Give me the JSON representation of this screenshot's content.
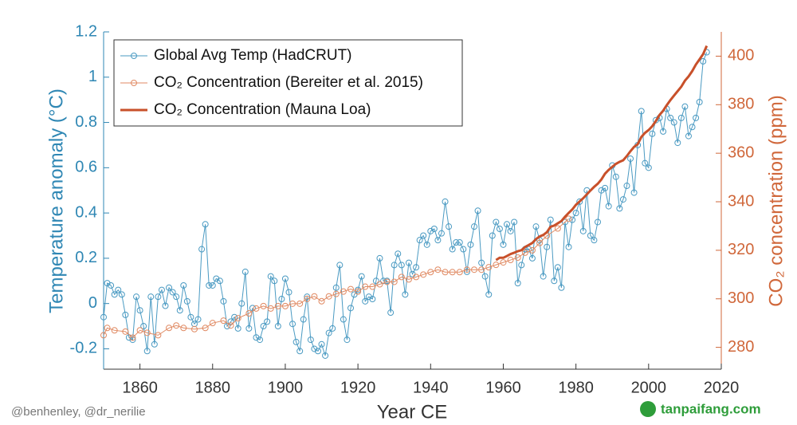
{
  "chart_data": {
    "type": "line",
    "xlabel": "Year CE",
    "ylabel": "Temperature anomaly (°C)",
    "y2label": "CO₂ concentration (ppm)",
    "credit": "@benhenley, @dr_nerilie",
    "watermark": "tanpaifang.com",
    "legend": "upper left",
    "xlim": [
      1850,
      2020
    ],
    "xticks": [
      1860,
      1880,
      1900,
      1920,
      1940,
      1960,
      1980,
      2000,
      2020
    ],
    "ylim": [
      -0.29,
      1.2
    ],
    "yticks": [
      -0.2,
      0,
      0.2,
      0.4,
      0.6,
      0.8,
      1,
      1.2
    ],
    "y2lim": [
      271,
      410
    ],
    "y2ticks": [
      280,
      300,
      320,
      340,
      360,
      380,
      400
    ],
    "axis_colors": {
      "y": "#2f87b4",
      "y2": "#d0673a"
    },
    "series": [
      {
        "name": "Global Avg Temp (HadCRUT)",
        "color": "#4a9ac2",
        "marker": "circle",
        "axis": "y",
        "x": [
          1850,
          1851,
          1852,
          1853,
          1854,
          1855,
          1856,
          1857,
          1858,
          1859,
          1860,
          1861,
          1862,
          1863,
          1864,
          1865,
          1866,
          1867,
          1868,
          1869,
          1870,
          1871,
          1872,
          1873,
          1874,
          1875,
          1876,
          1877,
          1878,
          1879,
          1880,
          1881,
          1882,
          1883,
          1884,
          1885,
          1886,
          1887,
          1888,
          1889,
          1890,
          1891,
          1892,
          1893,
          1894,
          1895,
          1896,
          1897,
          1898,
          1899,
          1900,
          1901,
          1902,
          1903,
          1904,
          1905,
          1906,
          1907,
          1908,
          1909,
          1910,
          1911,
          1912,
          1913,
          1914,
          1915,
          1916,
          1917,
          1918,
          1919,
          1920,
          1921,
          1922,
          1923,
          1924,
          1925,
          1926,
          1927,
          1928,
          1929,
          1930,
          1931,
          1932,
          1933,
          1934,
          1935,
          1936,
          1937,
          1938,
          1939,
          1940,
          1941,
          1942,
          1943,
          1944,
          1945,
          1946,
          1947,
          1948,
          1949,
          1950,
          1951,
          1952,
          1953,
          1954,
          1955,
          1956,
          1957,
          1958,
          1959,
          1960,
          1961,
          1962,
          1963,
          1964,
          1965,
          1966,
          1967,
          1968,
          1969,
          1970,
          1971,
          1972,
          1973,
          1974,
          1975,
          1976,
          1977,
          1978,
          1979,
          1980,
          1981,
          1982,
          1983,
          1984,
          1985,
          1986,
          1987,
          1988,
          1989,
          1990,
          1991,
          1992,
          1993,
          1994,
          1995,
          1996,
          1997,
          1998,
          1999,
          2000,
          2001,
          2002,
          2003,
          2004,
          2005,
          2006,
          2007,
          2008,
          2009,
          2010,
          2011,
          2012,
          2013,
          2014,
          2015,
          2016
        ],
        "values": [
          -0.06,
          0.09,
          0.08,
          0.04,
          0.06,
          0.04,
          -0.05,
          -0.15,
          -0.16,
          0.03,
          -0.03,
          -0.1,
          -0.21,
          0.03,
          -0.18,
          0.03,
          0.06,
          -0.01,
          0.07,
          0.05,
          0.03,
          -0.03,
          0.08,
          0.01,
          -0.06,
          -0.09,
          -0.07,
          0.24,
          0.35,
          0.08,
          0.08,
          0.11,
          0.1,
          0.01,
          -0.1,
          -0.08,
          -0.06,
          -0.11,
          0.0,
          0.14,
          -0.11,
          -0.02,
          -0.15,
          -0.16,
          -0.1,
          -0.08,
          0.12,
          0.1,
          -0.1,
          0.02,
          0.11,
          0.05,
          -0.09,
          -0.17,
          -0.21,
          -0.07,
          0.03,
          -0.16,
          -0.2,
          -0.21,
          -0.18,
          -0.23,
          -0.13,
          -0.11,
          0.07,
          0.17,
          -0.07,
          -0.16,
          -0.02,
          0.04,
          0.06,
          0.12,
          0.01,
          0.03,
          0.02,
          0.1,
          0.2,
          0.1,
          0.1,
          -0.04,
          0.17,
          0.22,
          0.17,
          0.04,
          0.18,
          0.13,
          0.16,
          0.28,
          0.3,
          0.26,
          0.32,
          0.33,
          0.28,
          0.31,
          0.45,
          0.34,
          0.24,
          0.27,
          0.27,
          0.24,
          0.14,
          0.26,
          0.34,
          0.41,
          0.18,
          0.12,
          0.04,
          0.3,
          0.36,
          0.33,
          0.26,
          0.35,
          0.32,
          0.36,
          0.09,
          0.17,
          0.24,
          0.24,
          0.2,
          0.34,
          0.28,
          0.12,
          0.25,
          0.37,
          0.1,
          0.16,
          0.07,
          0.36,
          0.25,
          0.37,
          0.4,
          0.45,
          0.32,
          0.5,
          0.3,
          0.28,
          0.36,
          0.5,
          0.51,
          0.43,
          0.61,
          0.56,
          0.42,
          0.46,
          0.52,
          0.64,
          0.49,
          0.7,
          0.85,
          0.62,
          0.6,
          0.75,
          0.81,
          0.82,
          0.76,
          0.86,
          0.82,
          0.8,
          0.71,
          0.82,
          0.87,
          0.74,
          0.78,
          0.82,
          0.89,
          1.07,
          1.11
        ]
      },
      {
        "name": "CO₂ Concentration (Bereiter et al. 2015)",
        "color": "#e08a63",
        "marker": "circle",
        "axis": "y2",
        "x": [
          1850,
          1851,
          1853,
          1856,
          1858,
          1860,
          1862,
          1865,
          1868,
          1870,
          1872,
          1875,
          1878,
          1880,
          1883,
          1885,
          1887,
          1890,
          1892,
          1894,
          1896,
          1898,
          1900,
          1902,
          1904,
          1906,
          1908,
          1910,
          1912,
          1914,
          1916,
          1918,
          1920,
          1922,
          1924,
          1926,
          1928,
          1930,
          1932,
          1934,
          1936,
          1938,
          1940,
          1942,
          1944,
          1946,
          1948,
          1950,
          1952,
          1954,
          1956,
          1958,
          1960,
          1962,
          1964,
          1966,
          1968,
          1970,
          1972,
          1975,
          1978
        ],
        "values": [
          285,
          288,
          287,
          286.5,
          284,
          287,
          286,
          285,
          288,
          289,
          288,
          287.5,
          288,
          290,
          291,
          289,
          292,
          294,
          296,
          297,
          296,
          297,
          297,
          298,
          298,
          300,
          301,
          299,
          301,
          302,
          303,
          304,
          303,
          305,
          305,
          306,
          307,
          307,
          309,
          308,
          309,
          310,
          311,
          312,
          311,
          311,
          311,
          312,
          312,
          312,
          313,
          314,
          315,
          316,
          317,
          319,
          320,
          323,
          326,
          329,
          333
        ]
      },
      {
        "name": "CO₂ Concentration (Mauna Loa)",
        "color": "#c8502a",
        "marker": "none",
        "axis": "y2",
        "x": [
          1958,
          1959,
          1960,
          1961,
          1962,
          1963,
          1964,
          1965,
          1966,
          1967,
          1968,
          1969,
          1970,
          1971,
          1972,
          1973,
          1974,
          1975,
          1976,
          1977,
          1978,
          1979,
          1980,
          1981,
          1982,
          1983,
          1984,
          1985,
          1986,
          1987,
          1988,
          1989,
          1990,
          1991,
          1992,
          1993,
          1994,
          1995,
          1996,
          1997,
          1998,
          1999,
          2000,
          2001,
          2002,
          2003,
          2004,
          2005,
          2006,
          2007,
          2008,
          2009,
          2010,
          2011,
          2012,
          2013,
          2014,
          2015,
          2016
        ],
        "values": [
          315.97,
          316.91,
          316.91,
          317.64,
          318.45,
          318.99,
          319.62,
          320.04,
          321.38,
          322.16,
          323.04,
          324.62,
          325.68,
          326.32,
          327.45,
          329.68,
          330.18,
          331.11,
          332.04,
          333.83,
          335.4,
          336.84,
          338.75,
          340.11,
          341.45,
          343.05,
          344.65,
          346.12,
          347.42,
          349.19,
          351.57,
          353.12,
          354.39,
          355.61,
          356.45,
          357.1,
          358.83,
          360.82,
          362.61,
          363.73,
          366.7,
          368.38,
          369.55,
          371.14,
          373.28,
          375.8,
          377.52,
          379.8,
          381.9,
          383.79,
          385.6,
          387.43,
          389.9,
          391.65,
          393.85,
          396.52,
          398.65,
          400.83,
          404.24
        ]
      }
    ]
  }
}
